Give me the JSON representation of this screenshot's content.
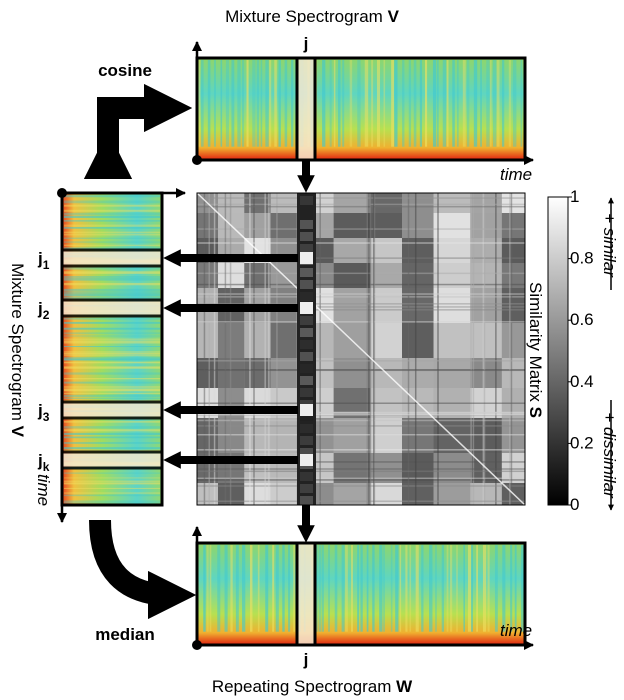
{
  "top": {
    "title": "Mixture Spectrogram",
    "symbol": "V",
    "column": "j",
    "axis": "time"
  },
  "left": {
    "title": "Mixture Spectrogram",
    "symbol": "V",
    "axis": "time",
    "rows": [
      {
        "base": "j",
        "sub": "1"
      },
      {
        "base": "j",
        "sub": "2"
      },
      {
        "base": "j",
        "sub": "3"
      },
      {
        "base": "j",
        "sub": "k"
      }
    ]
  },
  "matrix": {
    "title": "Similarity Matrix",
    "symbol": "S"
  },
  "colorbar": {
    "ticks": [
      "0",
      "0.2",
      "0.4",
      "0.6",
      "0.8",
      "1"
    ],
    "high": "+ similar",
    "low": "+ dissimilar"
  },
  "bottom": {
    "title": "Repeating Spectrogram",
    "symbol": "W",
    "column": "j",
    "axis": "time"
  },
  "steps": {
    "first": "cosine",
    "second": "median"
  }
}
